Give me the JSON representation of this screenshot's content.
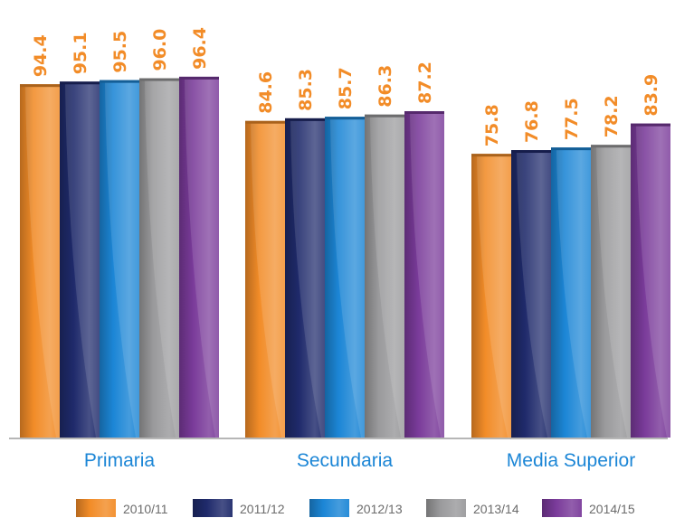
{
  "chart_data": {
    "type": "bar",
    "categories": [
      "Primaria",
      "Secundaria",
      "Media Superior"
    ],
    "series": [
      {
        "name": "2010/11",
        "color": "#F28C28",
        "values": [
          94.4,
          84.6,
          75.8
        ],
        "labels": [
          "94.4",
          "84.6",
          "75.8"
        ]
      },
      {
        "name": "2011/12",
        "color": "#1F2A6B",
        "values": [
          95.1,
          85.3,
          76.8
        ],
        "labels": [
          "95.1",
          "85.3",
          "76.8"
        ]
      },
      {
        "name": "2012/13",
        "color": "#1C86D6",
        "values": [
          95.5,
          85.7,
          77.5
        ],
        "labels": [
          "95.5",
          "85.7",
          "77.5"
        ]
      },
      {
        "name": "2013/14",
        "color": "#9A9A9C",
        "values": [
          96.0,
          86.3,
          78.2
        ],
        "labels": [
          "96.0",
          "86.3",
          "78.2"
        ]
      },
      {
        "name": "2014/15",
        "color": "#7A3B9A",
        "values": [
          96.4,
          87.2,
          83.9
        ],
        "labels": [
          "96.4",
          "87.2",
          "83.9"
        ]
      }
    ],
    "ylim": [
      0,
      100
    ],
    "grid": false,
    "legend_position": "bottom",
    "data_label_color": "#F28C28",
    "axis_label_color": "#1C86D6"
  }
}
